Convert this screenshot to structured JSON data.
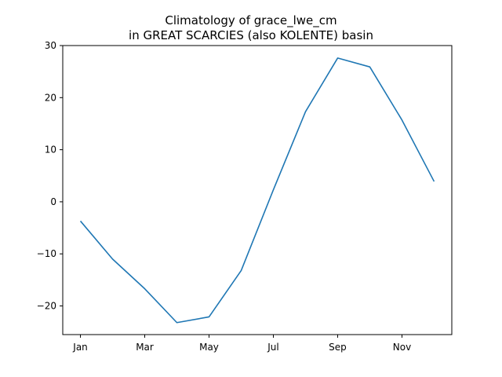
{
  "chart_data": {
    "type": "line",
    "title": "Climatology of grace_lwe_cm\nin GREAT SCARCIES (also KOLENTE) basin",
    "title_lines": [
      "Climatology of grace_lwe_cm",
      "in GREAT SCARCIES (also KOLENTE) basin"
    ],
    "xlabel": "",
    "ylabel": "",
    "x": [
      1,
      2,
      3,
      4,
      5,
      6,
      7,
      8,
      9,
      10,
      11,
      12
    ],
    "x_ticks": [
      1,
      3,
      5,
      7,
      9,
      11
    ],
    "x_tick_labels": [
      "Jan",
      "Mar",
      "May",
      "Jul",
      "Sep",
      "Nov"
    ],
    "y_ticks": [
      -20,
      -10,
      0,
      10,
      20,
      30
    ],
    "y_tick_labels": [
      "−20",
      "−10",
      "0",
      "10",
      "20",
      "30"
    ],
    "xlim": [
      0.45,
      12.55
    ],
    "ylim": [
      -25.5,
      30
    ],
    "grid": false,
    "series": [
      {
        "color": "#1f77b4",
        "values": [
          -3.7,
          -11.0,
          -16.7,
          -23.2,
          -22.1,
          -13.2,
          2.3,
          17.3,
          27.6,
          25.9,
          15.7,
          3.9
        ]
      }
    ]
  }
}
